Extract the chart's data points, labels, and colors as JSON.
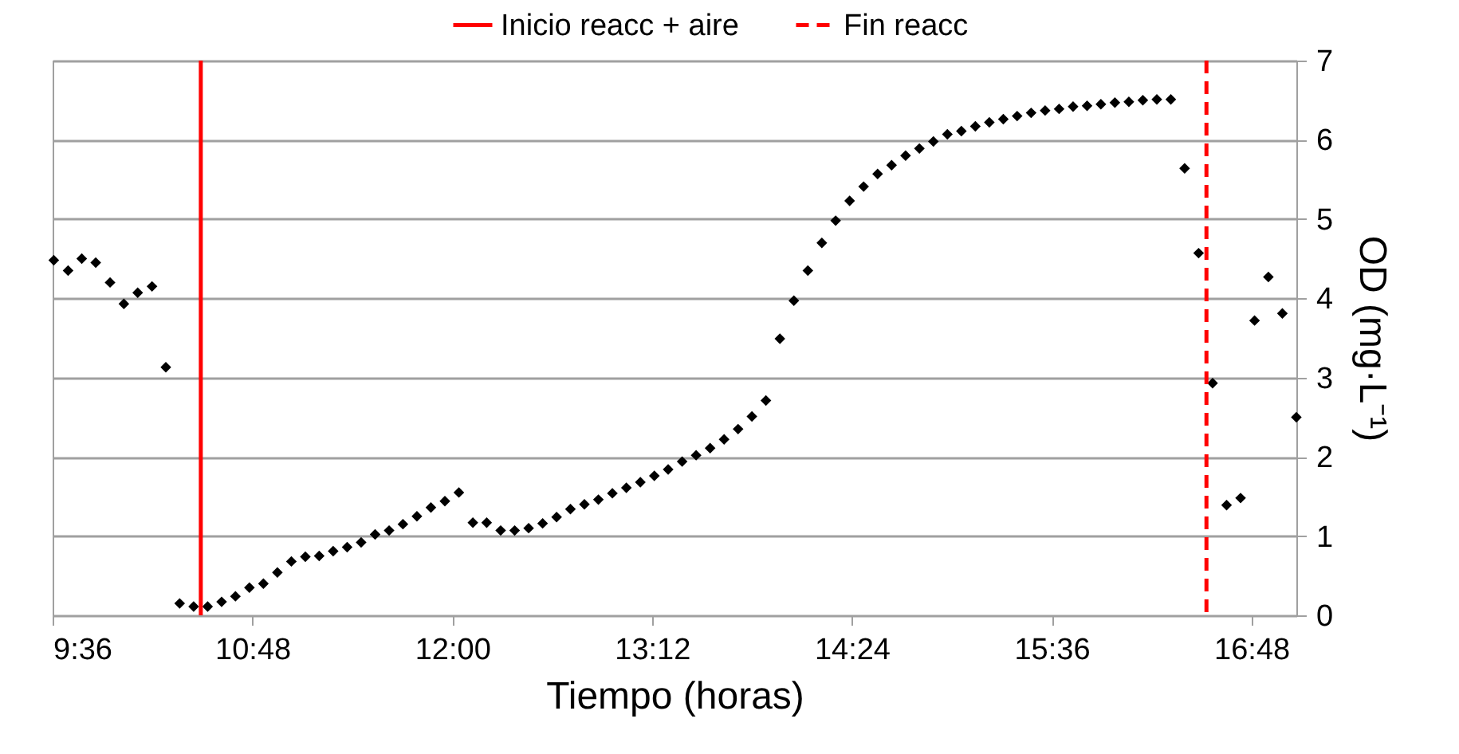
{
  "chart_data": {
    "type": "scatter",
    "xlabel": "Tiempo (horas)",
    "ylabel": "OD (mg·L⁻¹)",
    "x": [
      9.607,
      9.693,
      9.775,
      9.859,
      9.945,
      10.028,
      10.111,
      10.197,
      10.28,
      10.363,
      10.447,
      10.531,
      10.615,
      10.698,
      10.782,
      10.866,
      10.95,
      11.034,
      11.118,
      11.201,
      11.285,
      11.369,
      11.453,
      11.537,
      11.621,
      11.704,
      11.788,
      11.872,
      11.956,
      12.04,
      12.124,
      12.207,
      12.291,
      12.375,
      12.459,
      12.543,
      12.627,
      12.71,
      12.794,
      12.878,
      12.962,
      13.046,
      13.13,
      13.214,
      13.297,
      13.381,
      13.465,
      13.549,
      13.633,
      13.717,
      13.8,
      13.884,
      13.968,
      14.052,
      14.136,
      14.22,
      14.303,
      14.387,
      14.471,
      14.555,
      14.639,
      14.723,
      14.806,
      14.89,
      14.974,
      15.058,
      15.142,
      15.226,
      15.31,
      15.393,
      15.477,
      15.561,
      15.645,
      15.729,
      15.813,
      15.896,
      15.98,
      16.064,
      16.148,
      16.232,
      16.316,
      16.399,
      16.483,
      16.567,
      16.651,
      16.735,
      16.819,
      16.902,
      16.986,
      17.07
    ],
    "series": [
      {
        "color": "#000000",
        "values": [
          4.48,
          4.35,
          4.5,
          4.45,
          4.2,
          3.93,
          4.07,
          4.15,
          3.13,
          0.15,
          0.11,
          0.11,
          0.17,
          0.24,
          0.35,
          0.4,
          0.54,
          0.68,
          0.74,
          0.75,
          0.81,
          0.86,
          0.92,
          1.02,
          1.07,
          1.15,
          1.25,
          1.36,
          1.44,
          1.55,
          1.17,
          1.17,
          1.07,
          1.07,
          1.1,
          1.16,
          1.24,
          1.34,
          1.4,
          1.46,
          1.54,
          1.61,
          1.68,
          1.76,
          1.84,
          1.94,
          2.02,
          2.11,
          2.22,
          2.35,
          2.51,
          2.71,
          3.49,
          3.97,
          4.35,
          4.7,
          4.98,
          5.23,
          5.41,
          5.57,
          5.68,
          5.8,
          5.89,
          5.98,
          6.07,
          6.11,
          6.17,
          6.22,
          6.26,
          6.3,
          6.34,
          6.37,
          6.39,
          6.42,
          6.43,
          6.45,
          6.47,
          6.48,
          6.5,
          6.51,
          6.51,
          5.64,
          4.57,
          2.93,
          1.39,
          1.48,
          3.72,
          4.27,
          3.81,
          2.5
        ]
      }
    ],
    "marker": "diamond",
    "xlim": [
      9.6,
      17.07
    ],
    "xticks": [
      {
        "value": 9.6,
        "label": "9:36"
      },
      {
        "value": 10.8,
        "label": "10:48"
      },
      {
        "value": 12.0,
        "label": "12:00"
      },
      {
        "value": 13.2,
        "label": "13:12"
      },
      {
        "value": 14.4,
        "label": "14:24"
      },
      {
        "value": 15.6,
        "label": "15:36"
      },
      {
        "value": 16.8,
        "label": "16:48"
      }
    ],
    "ylim": [
      0,
      7
    ],
    "yticks": [
      0,
      1,
      2,
      3,
      4,
      5,
      6,
      7
    ],
    "ref_lines": [
      {
        "axis": "x",
        "value": 10.49,
        "label": "Inicio reacc + aire",
        "color": "#ff0000",
        "line_style": "solid"
      },
      {
        "axis": "x",
        "value": 16.53,
        "label": "Fin reacc",
        "color": "#ff0000",
        "line_style": "dashed"
      }
    ],
    "grid": "y",
    "legend": "top"
  }
}
